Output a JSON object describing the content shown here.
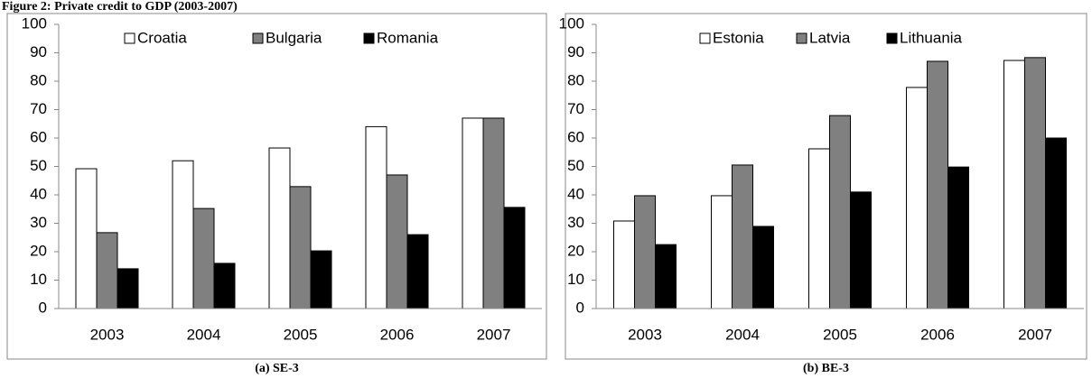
{
  "figure_title": "Figure 2: Private credit to GDP (2003-2007)",
  "chart_data": [
    {
      "type": "bar",
      "caption": "(a) SE-3",
      "categories": [
        "2003",
        "2004",
        "2005",
        "2006",
        "2007"
      ],
      "series": [
        {
          "name": "Croatia",
          "color": "#ffffff",
          "values": [
            49.2,
            52,
            56.5,
            64,
            67
          ]
        },
        {
          "name": "Bulgaria",
          "color": "#808080",
          "values": [
            26.7,
            35.2,
            42.9,
            47,
            67
          ]
        },
        {
          "name": "Romania",
          "color": "#000000",
          "values": [
            14,
            15.9,
            20.3,
            26,
            35.6
          ]
        }
      ],
      "ylim": [
        0,
        100
      ],
      "yticks": [
        0,
        10,
        20,
        30,
        40,
        50,
        60,
        70,
        80,
        90,
        100
      ],
      "grid": false,
      "legend": "top"
    },
    {
      "type": "bar",
      "caption": "(b) BE-3",
      "categories": [
        "2003",
        "2004",
        "2005",
        "2006",
        "2007"
      ],
      "series": [
        {
          "name": "Estonia",
          "color": "#ffffff",
          "values": [
            30.8,
            39.7,
            56.2,
            77.8,
            87.3
          ]
        },
        {
          "name": "Latvia",
          "color": "#808080",
          "values": [
            39.7,
            50.5,
            67.9,
            87,
            88.3
          ]
        },
        {
          "name": "Lithuania",
          "color": "#000000",
          "values": [
            22.5,
            28.9,
            41,
            49.8,
            60
          ]
        }
      ],
      "ylim": [
        0,
        100
      ],
      "yticks": [
        0,
        10,
        20,
        30,
        40,
        50,
        60,
        70,
        80,
        90,
        100
      ],
      "grid": false,
      "legend": "top"
    }
  ]
}
